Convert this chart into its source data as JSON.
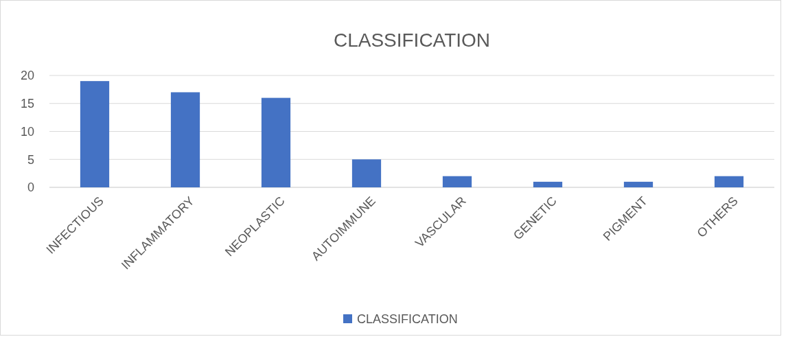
{
  "chart_data": {
    "type": "bar",
    "title": "CLASSIFICATION",
    "categories": [
      "INFECTIOUS",
      "INFLAMMATORY",
      "NEOPLASTIC",
      "AUTOIMMUNE",
      "VASCULAR",
      "GENETIC",
      "PIGMENT",
      "OTHERS"
    ],
    "series": [
      {
        "name": "CLASSIFICATION",
        "color": "#4472c4",
        "values": [
          19,
          17,
          16,
          5,
          2,
          1,
          1,
          2
        ]
      }
    ],
    "ylim": [
      0,
      20
    ],
    "yticks": [
      0,
      5,
      10,
      15,
      20
    ],
    "grid": "y",
    "legend": "bottom"
  }
}
